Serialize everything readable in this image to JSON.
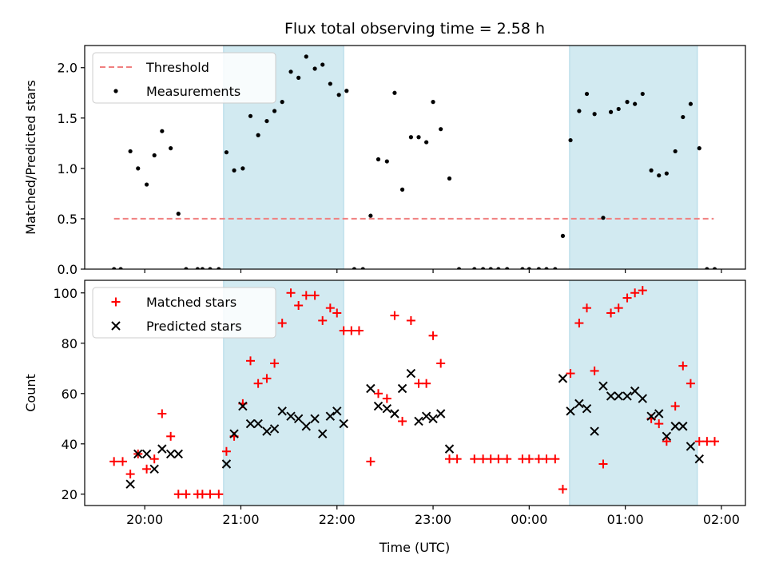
{
  "title": "Flux total observing time = 2.58 h",
  "xlabel": "Time (UTC)",
  "x_ticks": [
    "20:00",
    "21:00",
    "22:00",
    "23:00",
    "00:00",
    "01:00",
    "02:00"
  ],
  "x_tick_hours": [
    20,
    21,
    22,
    23,
    24,
    25,
    26
  ],
  "xlim": [
    19.375,
    26.25
  ],
  "shaded_intervals": [
    [
      20.82,
      22.07
    ],
    [
      24.42,
      25.75
    ]
  ],
  "colors": {
    "shade": "#add8e6",
    "threshold": "#f08080",
    "measurements": "#000000",
    "matched": "#ff0000",
    "predicted": "#000000"
  },
  "chart_data": [
    {
      "type": "scatter",
      "ylabel": "Matched/Predicted stars",
      "ylim": [
        0,
        2.22
      ],
      "y_ticks": [
        "0.0",
        "0.5",
        "1.0",
        "1.5",
        "2.0"
      ],
      "y_tick_values": [
        0,
        0.5,
        1.0,
        1.5,
        2.0
      ],
      "legend": {
        "placement": "top-left",
        "entries": [
          "Threshold",
          "Measurements"
        ]
      },
      "threshold": {
        "name": "Threshold",
        "value": 0.5,
        "x_range": [
          19.68,
          25.92
        ]
      },
      "series": [
        {
          "name": "Measurements",
          "points": [
            [
              19.68,
              0
            ],
            [
              19.75,
              0
            ],
            [
              19.85,
              1.17
            ],
            [
              19.93,
              1.0
            ],
            [
              20.02,
              0.84
            ],
            [
              20.1,
              1.13
            ],
            [
              20.18,
              1.37
            ],
            [
              20.27,
              1.2
            ],
            [
              20.35,
              0.55
            ],
            [
              20.43,
              0
            ],
            [
              20.55,
              0
            ],
            [
              20.6,
              0
            ],
            [
              20.68,
              0
            ],
            [
              20.77,
              0
            ],
            [
              20.85,
              1.16
            ],
            [
              20.93,
              0.98
            ],
            [
              21.02,
              1.0
            ],
            [
              21.1,
              1.52
            ],
            [
              21.18,
              1.33
            ],
            [
              21.27,
              1.47
            ],
            [
              21.35,
              1.57
            ],
            [
              21.43,
              1.66
            ],
            [
              21.52,
              1.96
            ],
            [
              21.6,
              1.9
            ],
            [
              21.68,
              2.11
            ],
            [
              21.77,
              1.99
            ],
            [
              21.85,
              2.03
            ],
            [
              21.93,
              1.84
            ],
            [
              22.02,
              1.73
            ],
            [
              22.1,
              1.77
            ],
            [
              22.18,
              0
            ],
            [
              22.27,
              0
            ],
            [
              22.35,
              0.53
            ],
            [
              22.43,
              1.09
            ],
            [
              22.52,
              1.07
            ],
            [
              22.6,
              1.75
            ],
            [
              22.68,
              0.79
            ],
            [
              22.77,
              1.31
            ],
            [
              22.85,
              1.31
            ],
            [
              22.93,
              1.26
            ],
            [
              23.0,
              1.66
            ],
            [
              23.08,
              1.39
            ],
            [
              23.17,
              0.9
            ],
            [
              23.27,
              0
            ],
            [
              23.43,
              0
            ],
            [
              23.52,
              0
            ],
            [
              23.6,
              0
            ],
            [
              23.68,
              0
            ],
            [
              23.77,
              0
            ],
            [
              23.93,
              0
            ],
            [
              24.0,
              0
            ],
            [
              24.1,
              0
            ],
            [
              24.18,
              0
            ],
            [
              24.27,
              0
            ],
            [
              24.35,
              0.33
            ],
            [
              24.43,
              1.28
            ],
            [
              24.52,
              1.57
            ],
            [
              24.6,
              1.74
            ],
            [
              24.68,
              1.54
            ],
            [
              24.77,
              0.51
            ],
            [
              24.85,
              1.56
            ],
            [
              24.93,
              1.59
            ],
            [
              25.02,
              1.66
            ],
            [
              25.1,
              1.64
            ],
            [
              25.18,
              1.74
            ],
            [
              25.27,
              0.98
            ],
            [
              25.35,
              0.93
            ],
            [
              25.43,
              0.95
            ],
            [
              25.52,
              1.17
            ],
            [
              25.6,
              1.51
            ],
            [
              25.68,
              1.64
            ],
            [
              25.77,
              1.2
            ],
            [
              25.85,
              0
            ],
            [
              25.93,
              0
            ]
          ]
        }
      ]
    },
    {
      "type": "scatter",
      "ylabel": "Count",
      "ylim": [
        15.5,
        105
      ],
      "y_ticks": [
        "20",
        "40",
        "60",
        "80",
        "100"
      ],
      "y_tick_values": [
        20,
        40,
        60,
        80,
        100
      ],
      "legend": {
        "placement": "top-left",
        "entries": [
          "Matched stars",
          "Predicted stars"
        ]
      },
      "series": [
        {
          "name": "Matched stars",
          "marker": "plus",
          "points": [
            [
              19.68,
              33
            ],
            [
              19.77,
              33
            ],
            [
              19.85,
              28
            ],
            [
              19.93,
              36
            ],
            [
              20.02,
              30
            ],
            [
              20.1,
              34
            ],
            [
              20.18,
              52
            ],
            [
              20.27,
              43
            ],
            [
              20.35,
              20
            ],
            [
              20.43,
              20
            ],
            [
              20.55,
              20
            ],
            [
              20.6,
              20
            ],
            [
              20.68,
              20
            ],
            [
              20.77,
              20
            ],
            [
              20.85,
              37
            ],
            [
              20.93,
              43
            ],
            [
              21.02,
              56
            ],
            [
              21.1,
              73
            ],
            [
              21.18,
              64
            ],
            [
              21.27,
              66
            ],
            [
              21.35,
              72
            ],
            [
              21.43,
              88
            ],
            [
              21.52,
              100
            ],
            [
              21.6,
              95
            ],
            [
              21.68,
              99
            ],
            [
              21.77,
              99
            ],
            [
              21.85,
              89
            ],
            [
              21.93,
              94
            ],
            [
              22.0,
              92
            ],
            [
              22.07,
              85
            ],
            [
              22.15,
              85
            ],
            [
              22.23,
              85
            ],
            [
              22.35,
              33
            ],
            [
              22.43,
              60
            ],
            [
              22.52,
              58
            ],
            [
              22.6,
              91
            ],
            [
              22.68,
              49
            ],
            [
              22.77,
              89
            ],
            [
              22.85,
              64
            ],
            [
              22.93,
              64
            ],
            [
              23.0,
              83
            ],
            [
              23.08,
              72
            ],
            [
              23.17,
              34
            ],
            [
              23.25,
              34
            ],
            [
              23.43,
              34
            ],
            [
              23.52,
              34
            ],
            [
              23.6,
              34
            ],
            [
              23.68,
              34
            ],
            [
              23.77,
              34
            ],
            [
              23.93,
              34
            ],
            [
              24.0,
              34
            ],
            [
              24.1,
              34
            ],
            [
              24.18,
              34
            ],
            [
              24.27,
              34
            ],
            [
              24.35,
              22
            ],
            [
              24.43,
              68
            ],
            [
              24.52,
              88
            ],
            [
              24.6,
              94
            ],
            [
              24.68,
              69
            ],
            [
              24.77,
              32
            ],
            [
              24.85,
              92
            ],
            [
              24.93,
              94
            ],
            [
              25.02,
              98
            ],
            [
              25.1,
              100
            ],
            [
              25.18,
              101
            ],
            [
              25.27,
              50
            ],
            [
              25.35,
              48
            ],
            [
              25.43,
              41
            ],
            [
              25.52,
              55
            ],
            [
              25.6,
              71
            ],
            [
              25.68,
              64
            ],
            [
              25.77,
              41
            ],
            [
              25.85,
              41
            ],
            [
              25.93,
              41
            ]
          ]
        },
        {
          "name": "Predicted stars",
          "marker": "x",
          "points": [
            [
              19.85,
              24
            ],
            [
              19.93,
              36
            ],
            [
              20.02,
              36
            ],
            [
              20.1,
              30
            ],
            [
              20.18,
              38
            ],
            [
              20.27,
              36
            ],
            [
              20.35,
              36
            ],
            [
              20.85,
              32
            ],
            [
              20.93,
              44
            ],
            [
              21.02,
              55
            ],
            [
              21.1,
              48
            ],
            [
              21.18,
              48
            ],
            [
              21.27,
              45
            ],
            [
              21.35,
              46
            ],
            [
              21.43,
              53
            ],
            [
              21.52,
              51
            ],
            [
              21.6,
              50
            ],
            [
              21.68,
              47
            ],
            [
              21.77,
              50
            ],
            [
              21.85,
              44
            ],
            [
              21.93,
              51
            ],
            [
              22.0,
              53
            ],
            [
              22.07,
              48
            ],
            [
              22.35,
              62
            ],
            [
              22.43,
              55
            ],
            [
              22.52,
              54
            ],
            [
              22.6,
              52
            ],
            [
              22.68,
              62
            ],
            [
              22.77,
              68
            ],
            [
              22.85,
              49
            ],
            [
              22.93,
              51
            ],
            [
              23.0,
              50
            ],
            [
              23.08,
              52
            ],
            [
              23.17,
              38
            ],
            [
              24.35,
              66
            ],
            [
              24.43,
              53
            ],
            [
              24.52,
              56
            ],
            [
              24.6,
              54
            ],
            [
              24.68,
              45
            ],
            [
              24.77,
              63
            ],
            [
              24.85,
              59
            ],
            [
              24.93,
              59
            ],
            [
              25.02,
              59
            ],
            [
              25.1,
              61
            ],
            [
              25.18,
              58
            ],
            [
              25.27,
              51
            ],
            [
              25.35,
              52
            ],
            [
              25.43,
              43
            ],
            [
              25.52,
              47
            ],
            [
              25.6,
              47
            ],
            [
              25.68,
              39
            ],
            [
              25.77,
              34
            ]
          ]
        }
      ]
    }
  ]
}
